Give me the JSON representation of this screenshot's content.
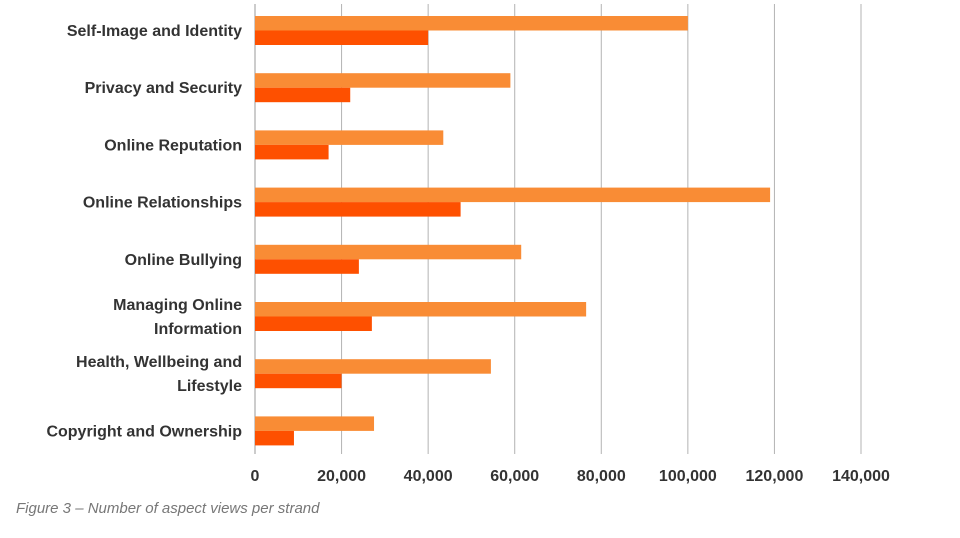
{
  "chart_data": {
    "type": "bar",
    "orientation": "horizontal",
    "categories": [
      "Self-Image and Identity",
      "Privacy and Security",
      "Online Reputation",
      "Online Relationships",
      "Online Bullying",
      "Managing Online Information",
      "Health, Wellbeing and Lifestyle",
      "Copyright and Ownership"
    ],
    "category_lines": [
      [
        "Self-Image and Identity"
      ],
      [
        "Privacy and Security"
      ],
      [
        "Online Reputation"
      ],
      [
        "Online Relationships"
      ],
      [
        "Online Bullying"
      ],
      [
        "Managing Online",
        "Information"
      ],
      [
        "Health, Wellbeing and",
        "Lifestyle"
      ],
      [
        "Copyright and Ownership"
      ]
    ],
    "series": [
      {
        "values": [
          100000,
          59000,
          43500,
          119000,
          61500,
          76500,
          54500,
          27500
        ],
        "color": "#f98c35"
      },
      {
        "values": [
          40000,
          22000,
          17000,
          47500,
          24000,
          27000,
          20000,
          9000
        ],
        "color": "#fe5000"
      }
    ],
    "xlim": [
      0,
      140000
    ],
    "xticks": [
      0,
      20000,
      40000,
      60000,
      80000,
      100000,
      120000,
      140000
    ],
    "xtick_labels": [
      "0",
      "20,000",
      "40,000",
      "60,000",
      "80,000",
      "100,000",
      "120,000",
      "140,000"
    ],
    "grid": true,
    "gridline_color": "#b3b3b3",
    "legend": "none",
    "title": "",
    "xlabel": "",
    "ylabel": ""
  },
  "caption": "Figure 3 – Number of aspect views per strand"
}
